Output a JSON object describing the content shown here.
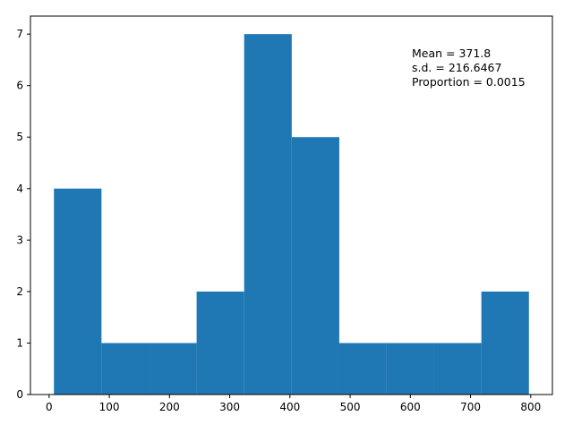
{
  "chart_data": {
    "type": "bar",
    "title": "",
    "xlabel": "",
    "ylabel": "",
    "bins": [
      [
        8,
        87
      ],
      [
        87,
        166
      ],
      [
        166,
        245
      ],
      [
        245,
        324
      ],
      [
        324,
        403
      ],
      [
        403,
        482
      ],
      [
        482,
        560
      ],
      [
        560,
        639
      ],
      [
        639,
        718
      ],
      [
        718,
        797
      ]
    ],
    "values": [
      4,
      1,
      1,
      2,
      7,
      5,
      1,
      1,
      1,
      2
    ],
    "xlim": [
      -31,
      836
    ],
    "ylim": [
      0,
      7.35
    ],
    "xticks": [
      0,
      100,
      200,
      300,
      400,
      500,
      600,
      700,
      800
    ],
    "yticks": [
      0,
      1,
      2,
      3,
      4,
      5,
      6,
      7
    ],
    "grid": false,
    "bar_color": "#1f77b4",
    "annotation": {
      "mean": "Mean = 371.8",
      "sd": "s.d. = 216.6467",
      "proportion": "Proportion = 0.0015"
    }
  }
}
